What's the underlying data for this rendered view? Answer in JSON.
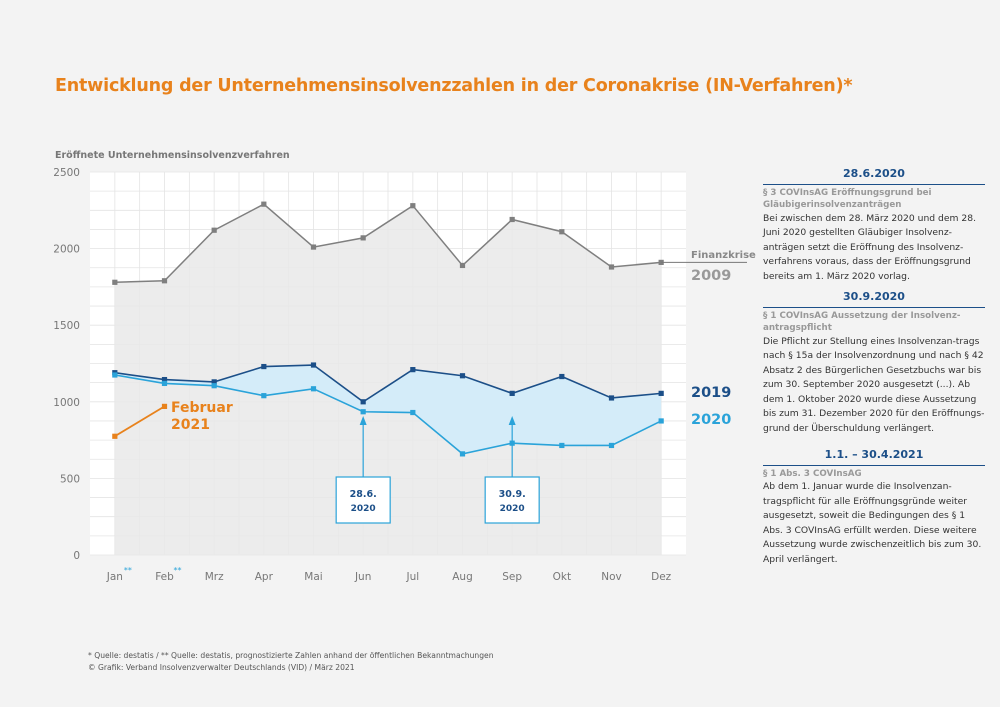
{
  "title": "Entwicklung der Unternehmensinsolvenzzahlen in der Coronakrise (IN-Verfahren)*",
  "chart_data": {
    "type": "line",
    "ylabel": "Eröffnete Unternehmensinsolvenzverfahren",
    "categories": [
      "Jan",
      "Feb",
      "Mrz",
      "Apr",
      "Mai",
      "Jun",
      "Jul",
      "Aug",
      "Sep",
      "Okt",
      "Nov",
      "Dez"
    ],
    "category_marks": {
      "Jan": "**",
      "Feb": "**"
    },
    "ylim": [
      0,
      2500
    ],
    "yticks": [
      0,
      500,
      1000,
      1500,
      2000,
      2500
    ],
    "grid": true,
    "series": [
      {
        "name": "2009",
        "extra_label": "Finanzkrise",
        "color": "#7f7f7f",
        "values": [
          1780,
          1790,
          2120,
          2290,
          2010,
          2070,
          2280,
          1890,
          2190,
          2110,
          1880,
          1910
        ]
      },
      {
        "name": "2019",
        "color": "#1c4f88",
        "values": [
          1190,
          1145,
          1130,
          1230,
          1240,
          1000,
          1210,
          1170,
          1055,
          1165,
          1025,
          1055
        ]
      },
      {
        "name": "2020",
        "color": "#2aa3d9",
        "values": [
          1175,
          1120,
          1105,
          1040,
          1085,
          935,
          930,
          660,
          730,
          715,
          715,
          875
        ]
      },
      {
        "name": "Februar 2021",
        "color": "#e8821c",
        "x": [
          "Jan",
          "Feb"
        ],
        "values": [
          775,
          970
        ]
      }
    ],
    "annotations": [
      {
        "text": "28.6.\n2020",
        "x": "Jun"
      },
      {
        "text": "30.9.\n2020",
        "x": "Sep"
      }
    ]
  },
  "sidebar": [
    {
      "date": "28.6.2020",
      "subtitle": "§ 3 COVInsAG Eröffnungsgrund bei Gläubigerinsolvenzanträgen",
      "body": "Bei zwischen dem 28. März 2020 und dem 28. Juni 2020 gestellten Gläubiger Insolvenz-anträgen setzt die Eröffnung des Insolvenz-verfahrens voraus, dass der Eröffnungsgrund bereits am 1. März 2020 vorlag."
    },
    {
      "date": "30.9.2020",
      "subtitle": "§ 1 COVInsAG Aussetzung der Insolvenz-antragspflicht",
      "body": "Die Pflicht zur Stellung eines Insolvenzan-trags nach § 15a der Insolvenzordnung und nach § 42 Absatz 2 des Bürgerlichen Gesetzbuchs war bis zum 30. September 2020 ausgesetzt (...). Ab dem 1. Oktober 2020 wurde diese Aussetzung bis zum 31. Dezember 2020 für den Eröffnungs-grund der Überschuldung verlängert."
    },
    {
      "date": "1.1. – 30.4.2021",
      "subtitle": "§ 1 Abs. 3 COVInsAG",
      "body": "Ab dem 1. Januar wurde die Insolvenzan-tragspflicht für alle Eröffnungsgründe weiter ausgesetzt, soweit die Bedingungen des § 1 Abs. 3 COVInsAG erfüllt werden. Diese weitere Aussetzung wurde zwischenzeitlich bis zum 30. April verlängert."
    }
  ],
  "footer": {
    "line1": "* Quelle: destatis / ** Quelle: destatis, prognostizierte Zahlen anhand der öffentlichen Bekanntmachungen",
    "line2": "© Grafik: Verband Insolvenzverwalter Deutschlands (VID) / März 2021"
  }
}
